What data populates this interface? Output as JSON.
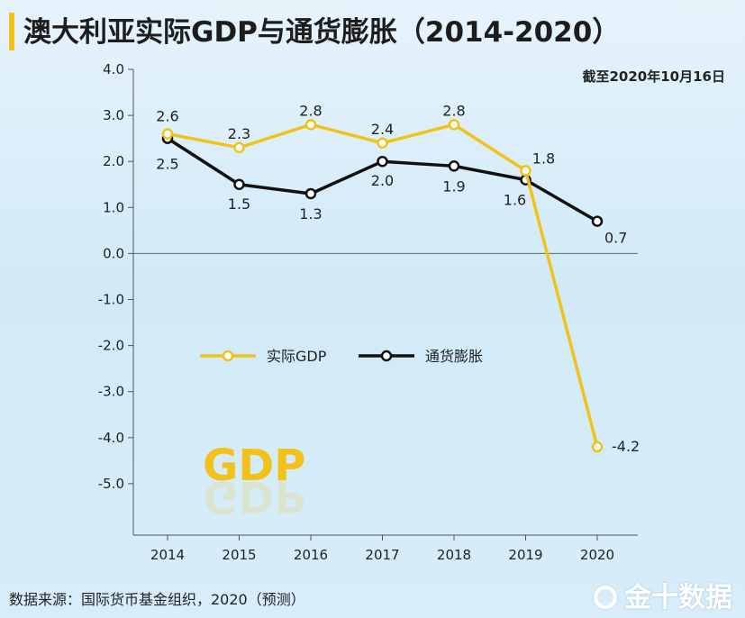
{
  "header": {
    "title": "澳大利亚实际GDP与通货膨胀（2014-2020）",
    "as_of": "截至2020年10月16日"
  },
  "footer": {
    "source": "数据来源：国际货币基金组织，2020（预测）",
    "brand": "金十数据"
  },
  "decoration": {
    "text": "GDP"
  },
  "colors": {
    "gdp": "#f0c31a",
    "inflation": "#111111",
    "accent": "#f2c21b"
  },
  "chart_data": {
    "type": "line",
    "x": [
      "2014",
      "2015",
      "2016",
      "2017",
      "2018",
      "2019",
      "2020"
    ],
    "ylim": [
      -6,
      4
    ],
    "yticks": [
      "4.0",
      "3.0",
      "2.0",
      "1.0",
      "0.0",
      "-1.0",
      "-2.0",
      "-3.0",
      "-4.0",
      "-5.0"
    ],
    "legend_position": "center-left",
    "grid": false,
    "series": [
      {
        "name": "实际GDP",
        "values": [
          2.6,
          2.3,
          2.8,
          2.4,
          2.8,
          1.8,
          -4.2
        ],
        "labels": [
          "2.6",
          "2.3",
          "2.8",
          "2.4",
          "2.8",
          "1.8",
          "-4.2"
        ]
      },
      {
        "name": "通货膨胀",
        "values": [
          2.5,
          1.5,
          1.3,
          2.0,
          1.9,
          1.6,
          0.7
        ],
        "labels": [
          "2.5",
          "1.5",
          "1.3",
          "2.0",
          "1.9",
          "1.6",
          "0.7"
        ]
      }
    ]
  }
}
